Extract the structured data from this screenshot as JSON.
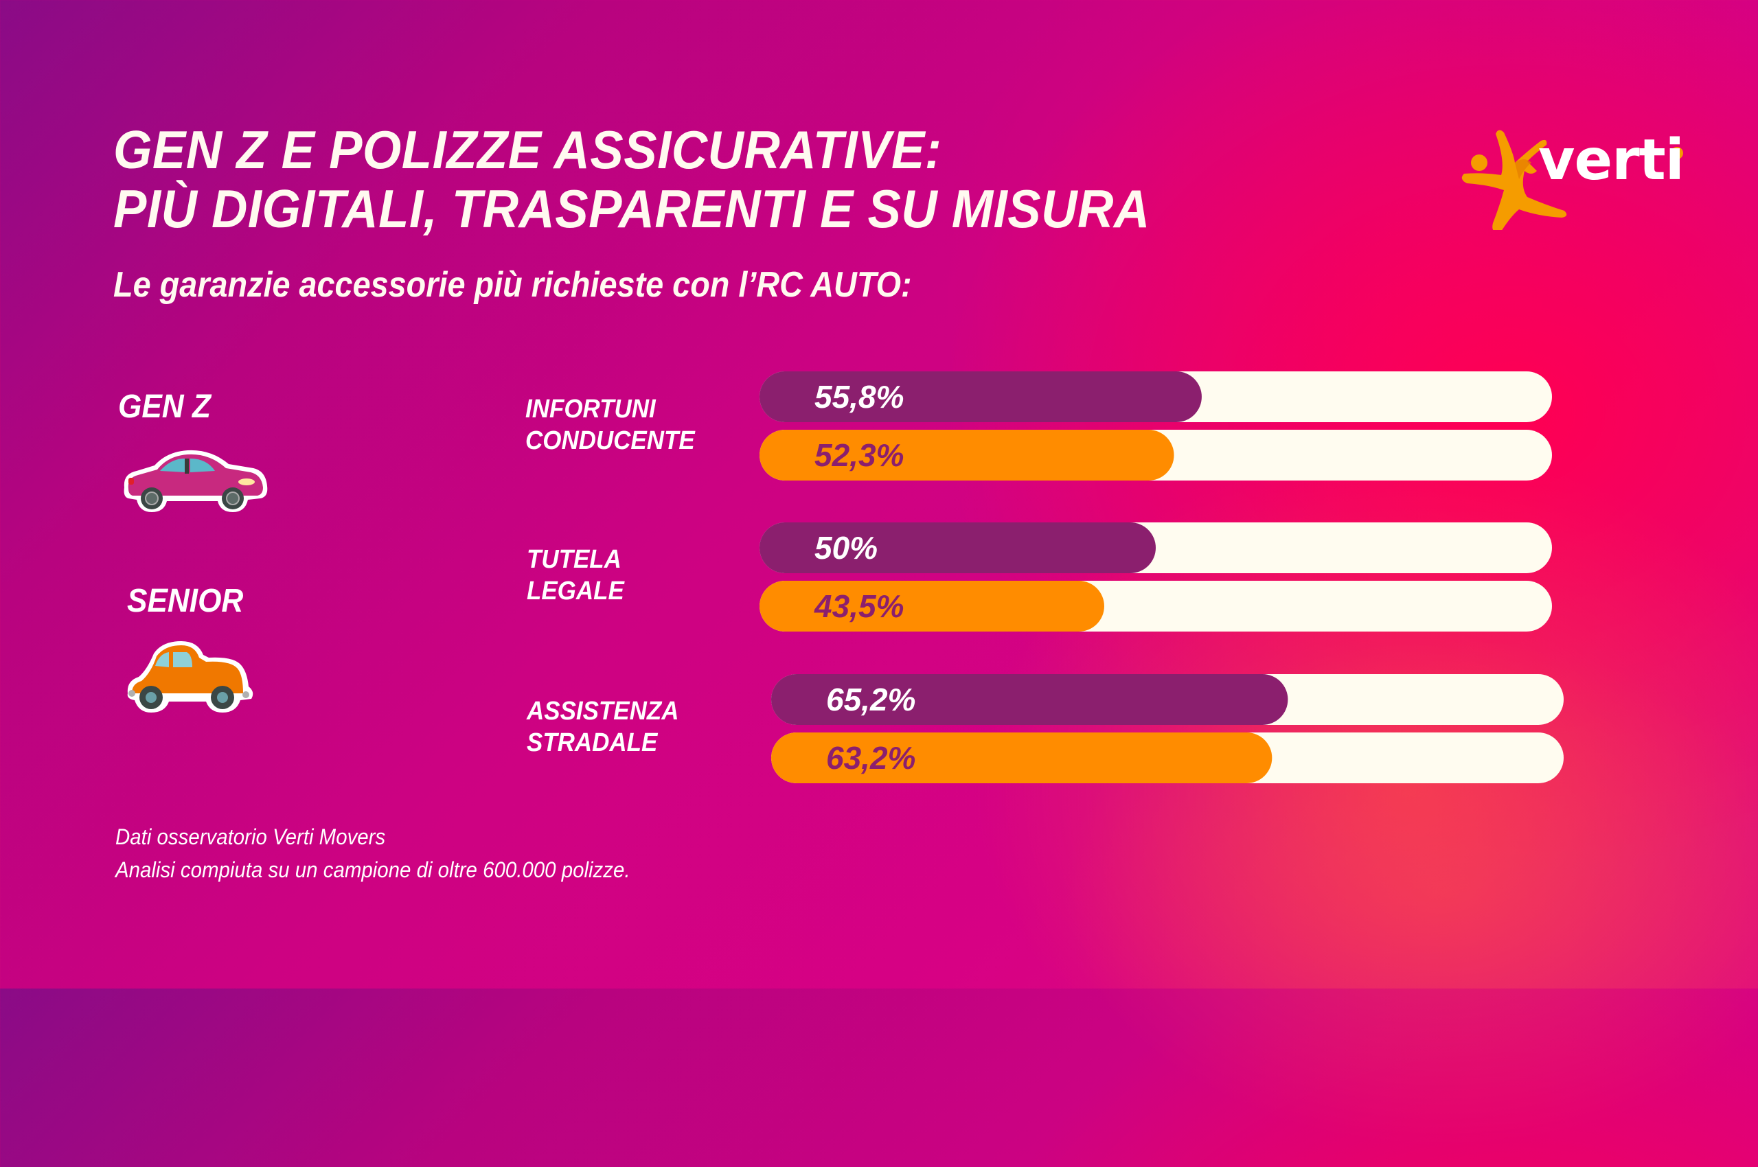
{
  "header": {
    "title_line1": "GEN Z E POLIZZE ASSICURATIVE:",
    "title_line2": "PIÙ DIGITALI, TRASPARENTI E SU MISURA",
    "subtitle": "Le garanzie accessorie più richieste con l’RC AUTO:"
  },
  "logo": {
    "text": "verti",
    "icon": "verti-star-figure-icon",
    "color": "#f59c00"
  },
  "legend": [
    {
      "label": "GEN Z",
      "icon": "modern-sedan-car-icon",
      "color": "#8b1f6e"
    },
    {
      "label": "SENIOR",
      "icon": "vintage-car-icon",
      "color": "#ff8c00"
    }
  ],
  "colors": {
    "track": "#fffcf0",
    "genz_bar": "#8b1f6e",
    "senior_bar": "#ff8c00",
    "genz_value_text": "#ffffff",
    "senior_value_text": "#8b1f6e"
  },
  "footer": {
    "line1": "Dati osservatorio Verti Movers",
    "line2": "Analisi compiuta su un campione di oltre 600.000 polizze."
  },
  "chart_data": {
    "type": "bar",
    "orientation": "horizontal",
    "title": "Le garanzie accessorie più richieste con l’RC AUTO:",
    "categories": [
      "INFORTUNI CONDUCENTE",
      "TUTELA LEGALE",
      "ASSISTENZA STRADALE"
    ],
    "category_lines": [
      [
        "INFORTUNI",
        "CONDUCENTE"
      ],
      [
        "TUTELA",
        "LEGALE"
      ],
      [
        "ASSISTENZA",
        "STRADALE"
      ]
    ],
    "series": [
      {
        "name": "GEN Z",
        "values": [
          55.8,
          50,
          65.2
        ],
        "labels": [
          "55,8%",
          "50%",
          "65,2%"
        ]
      },
      {
        "name": "SENIOR",
        "values": [
          52.3,
          43.5,
          63.2
        ],
        "labels": [
          "52,3%",
          "43,5%",
          "63,2%"
        ]
      }
    ],
    "xlim": [
      0,
      100
    ],
    "unit": "%",
    "grid": false,
    "legend": "left"
  }
}
